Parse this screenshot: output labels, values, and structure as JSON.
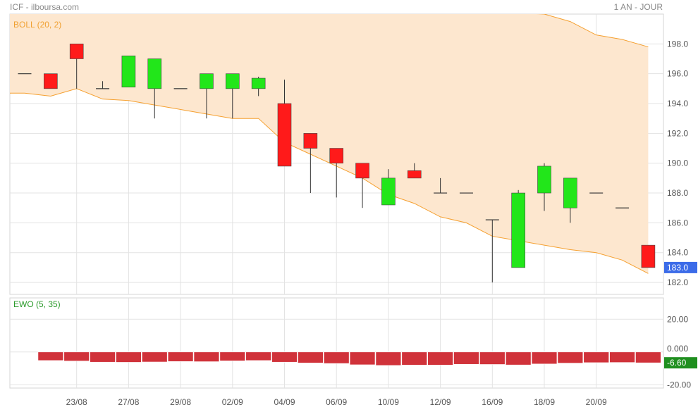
{
  "header": {
    "symbol_source": "ICF - ilboursa.com",
    "period": "1 AN - JOUR"
  },
  "colors": {
    "up": "#22e61a",
    "down": "#ff1a1a",
    "boll_band": "#fde7cf",
    "boll_line": "#f5a030",
    "ewo_bar": "#d0323a",
    "last_price_tag": "#3b6be8",
    "ewo_tag": "#1f8f1f"
  },
  "chart_data": [
    {
      "type": "candlestick",
      "indicator_label": "BOLL (20, 2)",
      "x_tick_labels": [
        "23/08",
        "27/08",
        "29/08",
        "02/09",
        "04/09",
        "06/09",
        "10/09",
        "12/09",
        "16/09",
        "18/09",
        "20/09"
      ],
      "y_tick_labels": [
        "182.0",
        "184.0",
        "186.0",
        "188.0",
        "190.0",
        "192.0",
        "194.0",
        "196.0",
        "198.0"
      ],
      "ylim": [
        181.2,
        200.0
      ],
      "grid": true,
      "last_price_label": "183.0",
      "candles": [
        {
          "open": 196.0,
          "high": 196.0,
          "low": 196.0,
          "close": 196.0
        },
        {
          "open": 196.0,
          "high": 196.0,
          "low": 195.0,
          "close": 195.0
        },
        {
          "open": 198.0,
          "high": 198.0,
          "low": 195.0,
          "close": 197.0
        },
        {
          "open": 195.0,
          "high": 195.5,
          "low": 195.0,
          "close": 195.0
        },
        {
          "open": 195.1,
          "high": 197.2,
          "low": 195.1,
          "close": 197.2
        },
        {
          "open": 195.0,
          "high": 197.0,
          "low": 193.0,
          "close": 197.0
        },
        {
          "open": 195.0,
          "high": 195.0,
          "low": 195.0,
          "close": 195.0
        },
        {
          "open": 195.0,
          "high": 196.0,
          "low": 193.0,
          "close": 196.0
        },
        {
          "open": 195.0,
          "high": 196.0,
          "low": 193.0,
          "close": 196.0
        },
        {
          "open": 195.0,
          "high": 195.8,
          "low": 194.5,
          "close": 195.7
        },
        {
          "open": 194.0,
          "high": 195.6,
          "low": 189.8,
          "close": 189.8
        },
        {
          "open": 192.0,
          "high": 192.0,
          "low": 188.0,
          "close": 191.0
        },
        {
          "open": 191.0,
          "high": 191.0,
          "low": 187.7,
          "close": 190.0
        },
        {
          "open": 190.0,
          "high": 190.0,
          "low": 187.0,
          "close": 189.0
        },
        {
          "open": 187.2,
          "high": 189.6,
          "low": 187.2,
          "close": 189.0
        },
        {
          "open": 189.5,
          "high": 190.0,
          "low": 189.0,
          "close": 189.0
        },
        {
          "open": 188.0,
          "high": 189.0,
          "low": 188.0,
          "close": 188.0
        },
        {
          "open": 188.0,
          "high": 188.0,
          "low": 188.0,
          "close": 188.0
        },
        {
          "open": 186.2,
          "high": 186.2,
          "low": 182.0,
          "close": 186.2
        },
        {
          "open": 183.0,
          "high": 188.2,
          "low": 183.0,
          "close": 188.0
        },
        {
          "open": 188.0,
          "high": 190.0,
          "low": 186.8,
          "close": 189.8
        },
        {
          "open": 187.0,
          "high": 189.0,
          "low": 186.0,
          "close": 189.0
        },
        {
          "open": 188.0,
          "high": 188.0,
          "low": 188.0,
          "close": 188.0
        },
        {
          "open": 187.0,
          "high": 187.0,
          "low": 187.0,
          "close": 187.0
        },
        {
          "open": 184.5,
          "high": 184.5,
          "low": 183.0,
          "close": 183.0
        }
      ],
      "bollinger_upper": [
        null,
        null,
        null,
        null,
        null,
        null,
        null,
        null,
        null,
        null,
        null,
        null,
        null,
        null,
        null,
        null,
        null,
        null,
        null,
        null,
        200.0,
        199.5,
        198.6,
        198.3,
        197.8
      ],
      "bollinger_lower": [
        194.7,
        194.5,
        195.0,
        194.3,
        194.2,
        193.9,
        193.6,
        193.3,
        193.0,
        193.0,
        191.4,
        190.6,
        189.8,
        189.0,
        187.9,
        187.3,
        186.4,
        186.0,
        185.1,
        184.8,
        184.5,
        184.2,
        184.0,
        183.5,
        182.6
      ]
    },
    {
      "type": "bar",
      "indicator_label": "EWO (5, 35)",
      "y_tick_labels": [
        "20.00",
        "0.000",
        "-20.00"
      ],
      "ylim": [
        -22.0,
        33.0
      ],
      "grid": true,
      "last_value_label": "-6.60",
      "values": [
        null,
        -5.2,
        -5.5,
        -6.2,
        -6.3,
        -6.1,
        -5.8,
        -5.9,
        -5.4,
        -5.2,
        -6.2,
        -6.7,
        -7.0,
        -7.8,
        -8.2,
        -8.0,
        -8.0,
        -7.5,
        -7.6,
        -7.9,
        -7.3,
        -6.8,
        -6.5,
        -6.4,
        -6.6
      ]
    }
  ]
}
